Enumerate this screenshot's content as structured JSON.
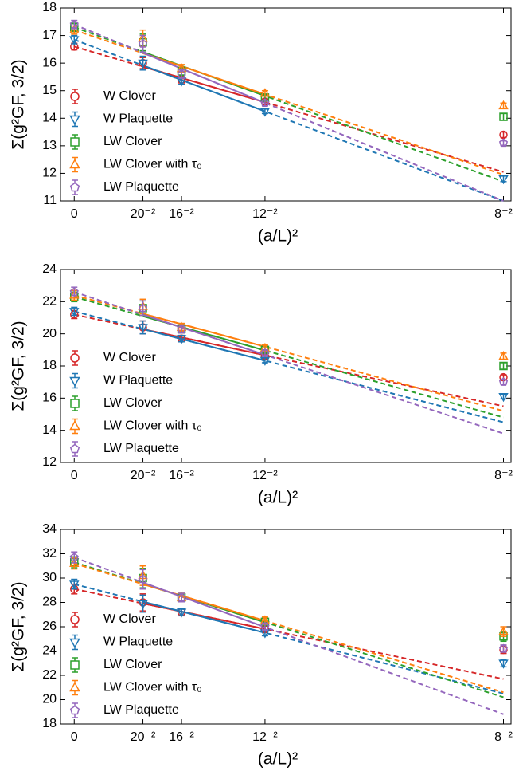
{
  "chart_data": [
    {
      "type": "scatter",
      "x_label": "(a/L)²",
      "y_label": "Σ(g²GF, 3/2)",
      "x": [
        0,
        0.0025,
        0.00390625,
        0.0069444,
        0.015625
      ],
      "xlim": [
        -0.0005,
        0.0159
      ],
      "xticks": [
        0,
        {
          "value": 0.0025,
          "label": "20⁻²"
        },
        {
          "value": 0.00390625,
          "label": "16⁻²"
        },
        {
          "value": 0.0069444,
          "label": "12⁻²"
        },
        {
          "value": 0.015625,
          "label": "8⁻²"
        }
      ],
      "ylim": [
        11,
        18
      ],
      "yticks": [
        11,
        12,
        13,
        14,
        15,
        16,
        17,
        18
      ],
      "legend": "lower left",
      "series": [
        {
          "name": "W Clover",
          "color": "#d62728",
          "marker": "circle",
          "values": [
            16.6,
            16.0,
            15.4,
            14.6,
            13.4
          ],
          "errors": [
            0.12,
            0.2,
            0.12,
            0.1,
            0.1
          ],
          "fit_end": 12.05
        },
        {
          "name": "W Plaquette",
          "color": "#1f77b4",
          "marker": "triangle-down",
          "values": [
            16.85,
            16.0,
            15.35,
            14.25,
            11.8
          ],
          "errors": [
            0.15,
            0.25,
            0.12,
            0.08,
            0.1
          ],
          "fit_end": 11.0
        },
        {
          "name": "LW Clover",
          "color": "#2ca02c",
          "marker": "square",
          "values": [
            17.3,
            16.75,
            15.7,
            14.75,
            14.05
          ],
          "errors": [
            0.15,
            0.3,
            0.15,
            0.1,
            0.12
          ],
          "fit_end": 11.7
        },
        {
          "name": "LW Clover with τ₀",
          "color": "#ff7f0e",
          "marker": "triangle-up",
          "values": [
            17.2,
            16.9,
            15.8,
            14.9,
            14.45
          ],
          "errors": [
            0.15,
            0.3,
            0.15,
            0.1,
            0.1
          ],
          "fit_end": 11.95
        },
        {
          "name": "LW Plaquette",
          "color": "#9467bd",
          "marker": "pentagon",
          "values": [
            17.4,
            16.7,
            15.6,
            14.55,
            13.1
          ],
          "errors": [
            0.15,
            0.3,
            0.15,
            0.1,
            0.08
          ],
          "fit_end": 11.0
        }
      ]
    },
    {
      "type": "scatter",
      "x_label": "(a/L)²",
      "y_label": "Σ(g²GF, 3/2)",
      "x": [
        0,
        0.0025,
        0.00390625,
        0.0069444,
        0.015625
      ],
      "xlim": [
        -0.0005,
        0.0159
      ],
      "xticks": [
        0,
        {
          "value": 0.0025,
          "label": "20⁻²"
        },
        {
          "value": 0.00390625,
          "label": "16⁻²"
        },
        {
          "value": 0.0069444,
          "label": "12⁻²"
        },
        {
          "value": 0.015625,
          "label": "8⁻²"
        }
      ],
      "ylim": [
        12,
        24
      ],
      "yticks": [
        12,
        14,
        16,
        18,
        20,
        22,
        24
      ],
      "legend": "lower left",
      "series": [
        {
          "name": "W Clover",
          "color": "#d62728",
          "marker": "circle",
          "values": [
            21.2,
            20.4,
            19.7,
            18.6,
            17.3
          ],
          "errors": [
            0.25,
            0.4,
            0.2,
            0.15,
            0.15
          ],
          "fit_end": 15.5
        },
        {
          "name": "W Plaquette",
          "color": "#1f77b4",
          "marker": "triangle-down",
          "values": [
            21.4,
            20.4,
            19.7,
            18.35,
            16.1
          ],
          "errors": [
            0.25,
            0.4,
            0.2,
            0.15,
            0.15
          ],
          "fit_end": 14.5
        },
        {
          "name": "LW Clover",
          "color": "#2ca02c",
          "marker": "square",
          "values": [
            22.3,
            21.6,
            20.3,
            19.0,
            18.0
          ],
          "errors": [
            0.3,
            0.45,
            0.25,
            0.2,
            0.2
          ],
          "fit_end": 14.8
        },
        {
          "name": "LW Clover with τ₀",
          "color": "#ff7f0e",
          "marker": "triangle-up",
          "values": [
            22.4,
            21.7,
            20.4,
            19.1,
            18.6
          ],
          "errors": [
            0.3,
            0.45,
            0.25,
            0.2,
            0.2
          ],
          "fit_end": 15.2
        },
        {
          "name": "LW Plaquette",
          "color": "#9467bd",
          "marker": "pentagon",
          "values": [
            22.6,
            21.6,
            20.3,
            18.8,
            17.0
          ],
          "errors": [
            0.3,
            0.45,
            0.25,
            0.2,
            0.15
          ],
          "fit_end": 13.8
        }
      ]
    },
    {
      "type": "scatter",
      "x_label": "(a/L)²",
      "y_label": "Σ(g²GF, 3/2)",
      "x": [
        0,
        0.0025,
        0.00390625,
        0.0069444,
        0.015625
      ],
      "xlim": [
        -0.0005,
        0.0159
      ],
      "xticks": [
        0,
        {
          "value": 0.0025,
          "label": "20⁻²"
        },
        {
          "value": 0.00390625,
          "label": "16⁻²"
        },
        {
          "value": 0.0069444,
          "label": "12⁻²"
        },
        {
          "value": 0.015625,
          "label": "8⁻²"
        }
      ],
      "ylim": [
        18,
        34
      ],
      "yticks": [
        18,
        20,
        22,
        24,
        26,
        28,
        30,
        32,
        34
      ],
      "legend": "lower left",
      "series": [
        {
          "name": "W Clover",
          "color": "#d62728",
          "marker": "circle",
          "values": [
            29.1,
            28.0,
            27.2,
            25.8,
            24.1
          ],
          "errors": [
            0.4,
            0.7,
            0.3,
            0.25,
            0.3
          ],
          "fit_end": 21.7
        },
        {
          "name": "W Plaquette",
          "color": "#1f77b4",
          "marker": "triangle-down",
          "values": [
            29.5,
            27.9,
            27.2,
            25.5,
            23.0
          ],
          "errors": [
            0.4,
            0.7,
            0.3,
            0.25,
            0.3
          ],
          "fit_end": 20.5
        },
        {
          "name": "LW Clover",
          "color": "#2ca02c",
          "marker": "square",
          "values": [
            31.3,
            30.0,
            28.4,
            26.4,
            25.2
          ],
          "errors": [
            0.45,
            0.8,
            0.35,
            0.3,
            0.4
          ],
          "fit_end": 20.2
        },
        {
          "name": "LW Clover with τ₀",
          "color": "#ff7f0e",
          "marker": "triangle-up",
          "values": [
            31.2,
            30.2,
            28.4,
            26.5,
            25.6
          ],
          "errors": [
            0.45,
            0.8,
            0.35,
            0.3,
            0.4
          ],
          "fit_end": 20.6
        },
        {
          "name": "LW Plaquette",
          "color": "#9467bd",
          "marker": "pentagon",
          "values": [
            31.7,
            29.9,
            28.4,
            26.0,
            24.2
          ],
          "errors": [
            0.45,
            0.8,
            0.35,
            0.3,
            0.3
          ],
          "fit_end": 18.8
        }
      ]
    }
  ]
}
